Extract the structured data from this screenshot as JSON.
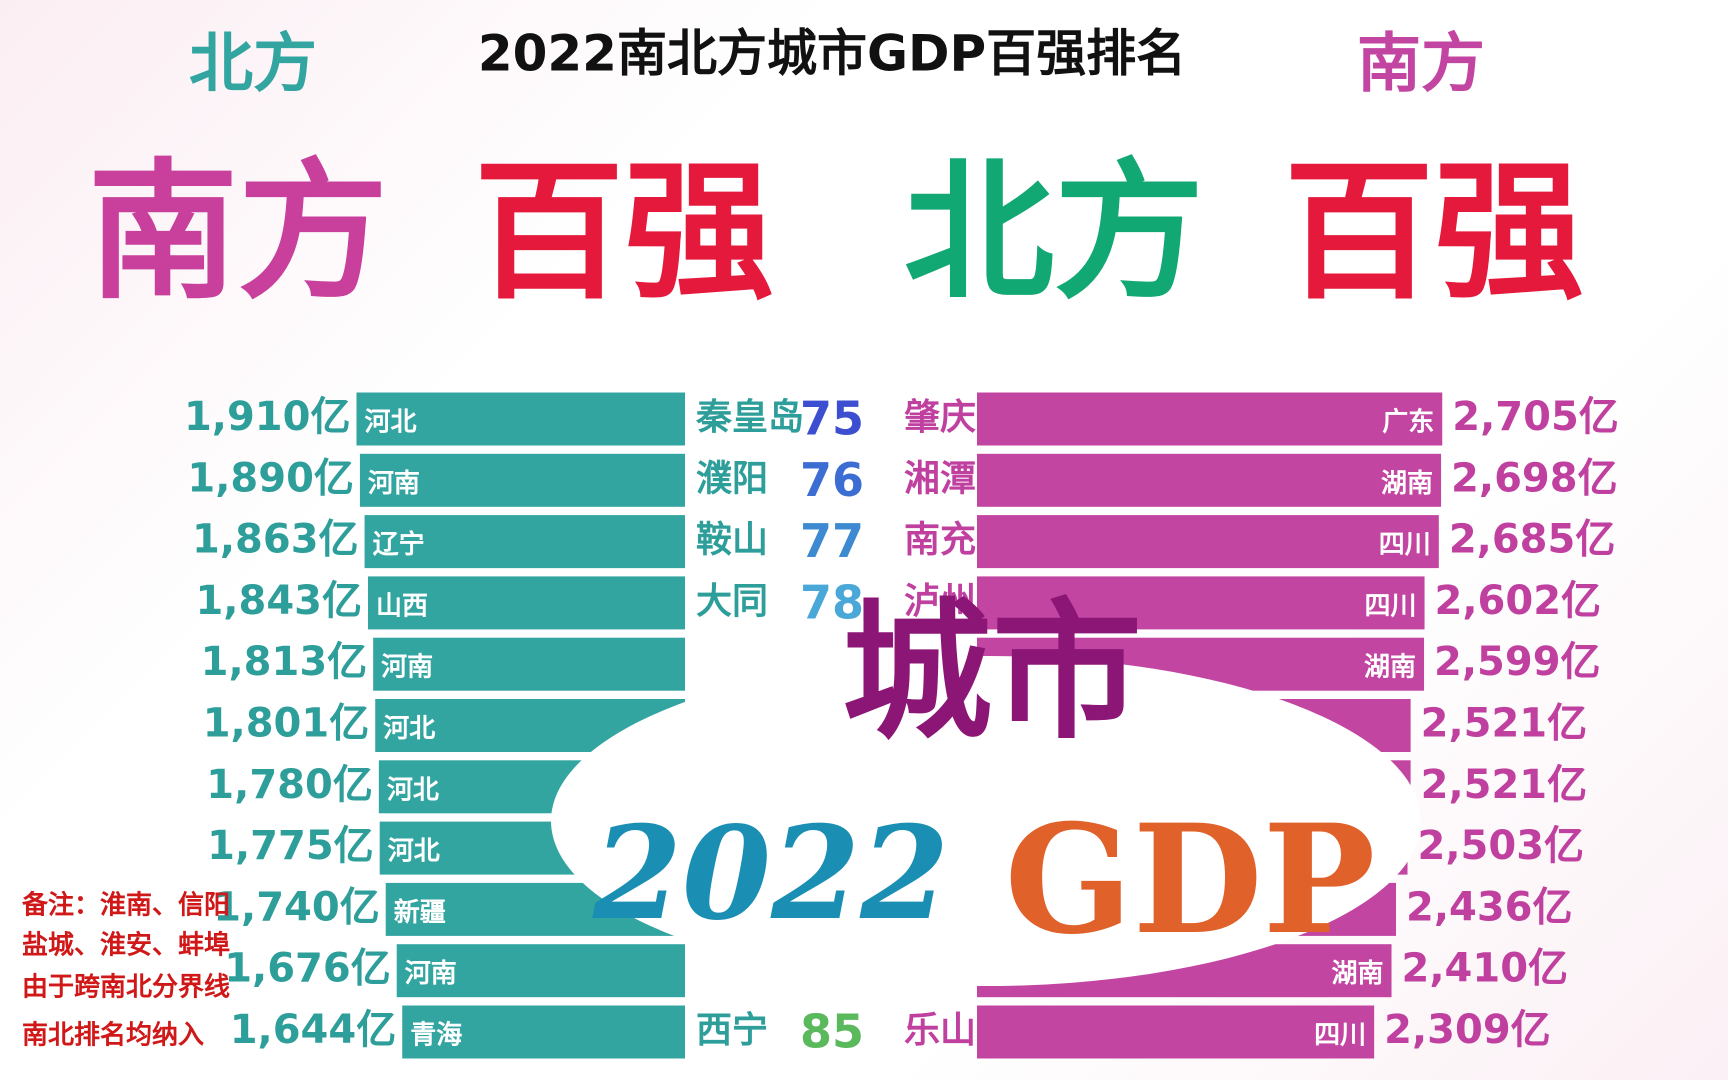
{
  "title": "2022南北方城市GDP百强排名",
  "left_header": "北方",
  "right_header": "南方",
  "banner": [
    "南方",
    "百强",
    "北方",
    "百强"
  ],
  "overlay": {
    "word": "城市",
    "year": "2022",
    "gdp": "GDP"
  },
  "note": [
    "备注：淮南、信阳",
    "盐城、淮安、蚌埠",
    "由于跨南北分界线",
    "南北排名均纳入"
  ],
  "chart_data": [
    {
      "type": "barh",
      "side": "left",
      "color": "#33a5a1",
      "label_color": "#2e9e9a",
      "categories": [
        "秦皇岛",
        "濮阳",
        "鞍山",
        "大同",
        null,
        null,
        null,
        null,
        null,
        null,
        "西宁"
      ],
      "ranks": [
        75,
        76,
        77,
        78,
        null,
        null,
        null,
        null,
        null,
        null,
        85
      ],
      "rank_colors": [
        "#3b4fd0",
        "#3c6dd3",
        "#3d8ad0",
        "#4aa8d8",
        null,
        null,
        null,
        null,
        null,
        null,
        "#5ab95a"
      ],
      "provinces": [
        "河北",
        "河南",
        "辽宁",
        "山西",
        "河南",
        "河北",
        "河北",
        "河北",
        "新疆",
        "河南",
        "青海"
      ],
      "values": [
        1910,
        1890,
        1863,
        1843,
        1813,
        1801,
        1780,
        1775,
        1740,
        1676,
        1644
      ],
      "value_labels": [
        "1,910亿",
        "1,890亿",
        "1,863亿",
        "1,843亿",
        "1,813亿",
        "1,801亿",
        "1,780亿",
        "1,775亿",
        "1,740亿",
        "1,676亿",
        "1,644亿"
      ]
    },
    {
      "type": "barh",
      "side": "right",
      "color": "#c345a2",
      "label_color": "#c040a0",
      "categories": [
        "肇庆",
        "湘潭",
        "南充",
        "泸州",
        null,
        null,
        null,
        null,
        null,
        null,
        "乐山"
      ],
      "provinces": [
        "广东",
        "湖南",
        "四川",
        "四川",
        "湖南",
        null,
        null,
        null,
        null,
        "湖南",
        "四川"
      ],
      "values": [
        2705,
        2698,
        2685,
        2602,
        2599,
        2521,
        2521,
        2503,
        2436,
        2410,
        2309
      ],
      "value_labels": [
        "2,705亿",
        "2,698亿",
        "2,685亿",
        "2,602亿",
        "2,599亿",
        "2,521亿",
        "2,521亿",
        "2,503亿",
        "2,436亿",
        "2,410亿",
        "2,309亿"
      ]
    }
  ]
}
